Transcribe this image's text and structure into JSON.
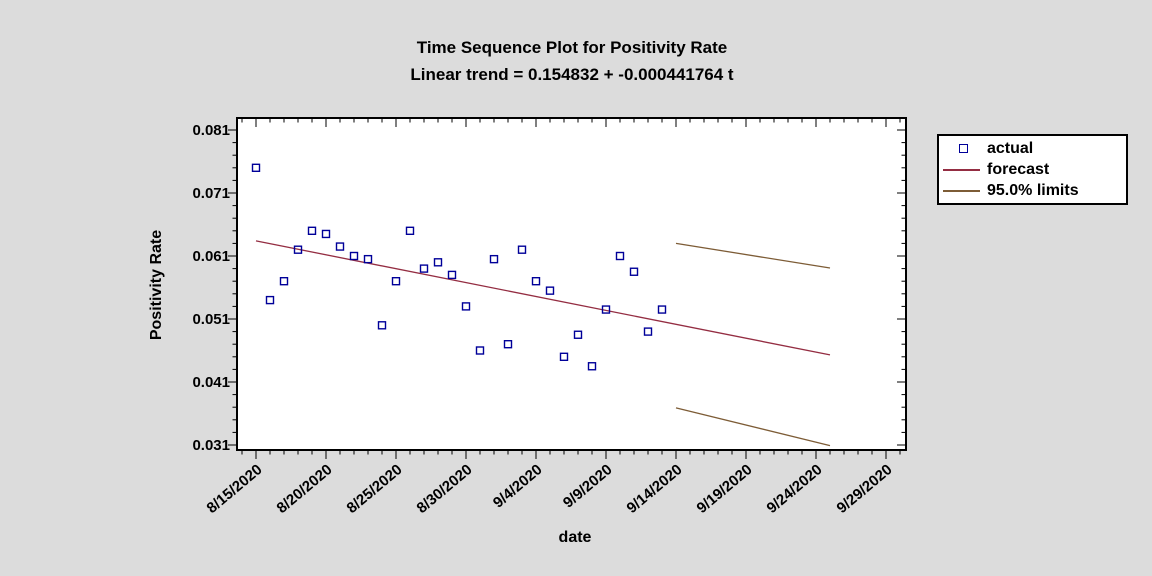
{
  "chart_data": {
    "type": "scatter",
    "subtype": "time-sequence-plot-with-forecast",
    "title": "Time Sequence Plot for Positivity Rate",
    "subtitle": "Linear trend = 0.154832 + -0.000441764 t",
    "xlabel": "date",
    "ylabel": "Positivity Rate",
    "x_axis": {
      "major_tick_labels": [
        "8/15/2020",
        "8/20/2020",
        "8/25/2020",
        "8/30/2020",
        "9/4/2020",
        "9/9/2020",
        "9/14/2020",
        "9/19/2020",
        "9/24/2020",
        "9/29/2020"
      ],
      "major_tick_step_days": 5,
      "minor_tick_step_days": 1,
      "visible_range": [
        "8/14/2020",
        "10/1/2020"
      ]
    },
    "y_axis": {
      "tick_labels": [
        "0.031",
        "0.041",
        "0.051",
        "0.061",
        "0.071",
        "0.081"
      ],
      "tick_values": [
        0.031,
        0.041,
        0.051,
        0.061,
        0.071,
        0.081
      ],
      "minor_step": 0.002,
      "range": [
        0.03,
        0.083
      ],
      "grid": false
    },
    "series": [
      {
        "name": "actual",
        "type": "scatter",
        "marker": "open-square",
        "color": "#000099",
        "dates": [
          "8/15/2020",
          "8/16/2020",
          "8/17/2020",
          "8/18/2020",
          "8/19/2020",
          "8/20/2020",
          "8/21/2020",
          "8/22/2020",
          "8/23/2020",
          "8/24/2020",
          "8/25/2020",
          "8/26/2020",
          "8/27/2020",
          "8/28/2020",
          "8/29/2020",
          "8/30/2020",
          "8/31/2020",
          "9/1/2020",
          "9/2/2020",
          "9/3/2020",
          "9/4/2020",
          "9/5/2020",
          "9/6/2020",
          "9/7/2020",
          "9/8/2020",
          "9/9/2020",
          "9/10/2020",
          "9/11/2020",
          "9/12/2020",
          "9/13/2020"
        ],
        "t": [
          0,
          1,
          2,
          3,
          4,
          5,
          6,
          7,
          8,
          9,
          10,
          11,
          12,
          13,
          14,
          15,
          16,
          17,
          18,
          19,
          20,
          21,
          22,
          23,
          24,
          25,
          26,
          27,
          28,
          29
        ],
        "values": [
          0.075,
          0.054,
          0.057,
          0.062,
          0.065,
          0.0645,
          0.0625,
          0.061,
          0.0605,
          0.05,
          0.057,
          0.065,
          0.059,
          0.06,
          0.058,
          0.053,
          0.046,
          0.0605,
          0.047,
          0.062,
          0.057,
          0.0555,
          0.045,
          0.0485,
          0.0435,
          0.0525,
          0.061,
          0.0585,
          0.049,
          0.0525
        ]
      },
      {
        "name": "forecast",
        "type": "line",
        "color": "#942D42",
        "points": [
          {
            "date": "8/15/2020",
            "t": 0,
            "value": 0.0634
          },
          {
            "date": "9/25/2020",
            "t": 41,
            "value": 0.0453
          }
        ]
      },
      {
        "name": "95.0% limits (upper)",
        "type": "line",
        "color": "#7D5C36",
        "points": [
          {
            "date": "9/14/2020",
            "t": 30,
            "value": 0.063
          },
          {
            "date": "9/25/2020",
            "t": 41,
            "value": 0.0591
          }
        ]
      },
      {
        "name": "95.0% limits (lower)",
        "type": "line",
        "color": "#7D5C36",
        "points": [
          {
            "date": "9/14/2020",
            "t": 30,
            "value": 0.0369
          },
          {
            "date": "9/25/2020",
            "t": 41,
            "value": 0.0309
          }
        ]
      }
    ],
    "legend_position": "outside-top-right",
    "colors": {
      "background": "#DCDCDC",
      "plot_background": "#FFFFFF",
      "axis": "#000000",
      "actual": "#000099",
      "forecast": "#942D42",
      "limits": "#7D5C36"
    }
  },
  "legend_items": [
    {
      "label": "actual",
      "swatch": "open-square-marker"
    },
    {
      "label": "forecast",
      "swatch": "line"
    },
    {
      "label": "95.0% limits",
      "swatch": "line"
    }
  ]
}
